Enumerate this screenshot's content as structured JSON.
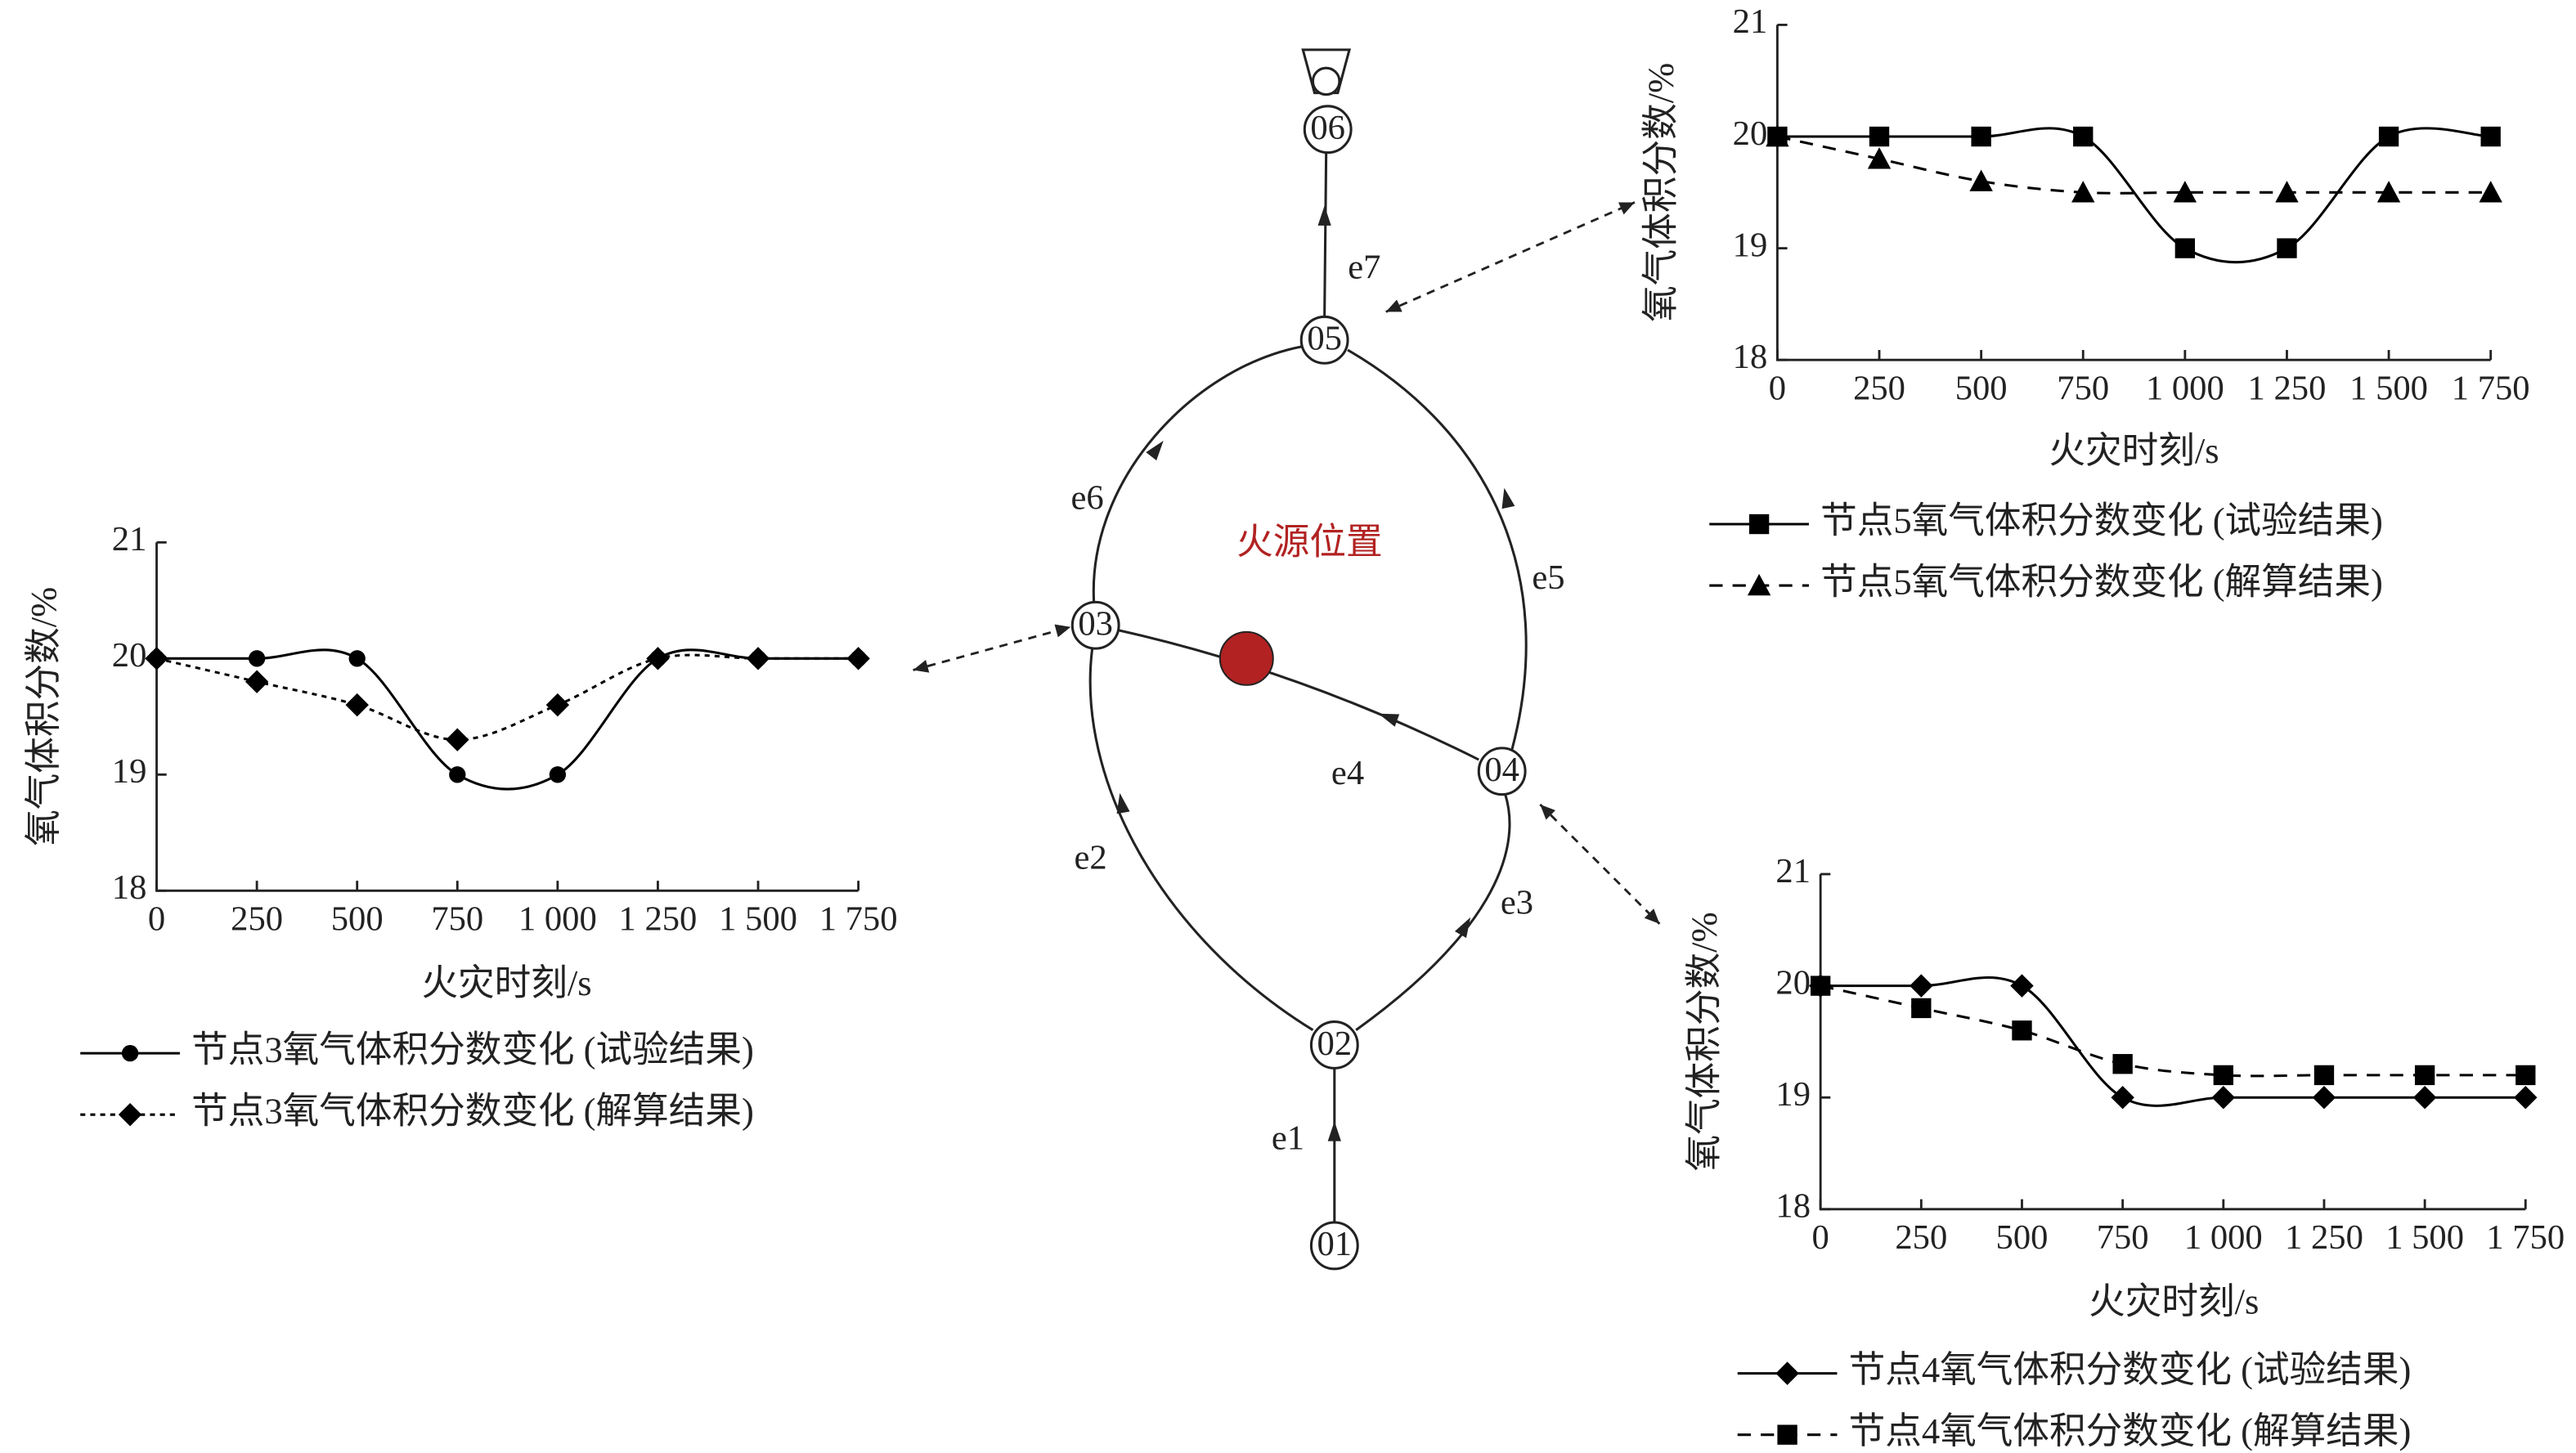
{
  "chart_data": [
    {
      "type": "line",
      "xlabel": "火灾时刻/s",
      "ylabel": "氧气体积分数/%",
      "x": [
        0,
        250,
        500,
        750,
        1000,
        1250,
        1500,
        1750
      ],
      "xlim": [
        0,
        1750
      ],
      "xticks": [
        0,
        250,
        500,
        750,
        {
          "value": 1000,
          "label": "1 000"
        },
        {
          "value": 1250,
          "label": "1 250"
        },
        {
          "value": 1500,
          "label": "1 500"
        },
        {
          "value": 1750,
          "label": "1 750"
        }
      ],
      "ylim": [
        18,
        21
      ],
      "yticks": [
        18,
        19,
        20,
        21
      ],
      "series": [
        {
          "name": "节点3氧气体积分数变化 (试验结果)",
          "color": "#000000",
          "marker": "circle",
          "line_style": "solid",
          "values": [
            20,
            20,
            20,
            19,
            19,
            20,
            20,
            20
          ]
        },
        {
          "name": "节点3氧气体积分数变化 (解算结果)",
          "color": "#000000",
          "marker": "diamond",
          "line_style": "dotted",
          "values": [
            20,
            19.8,
            19.6,
            19.3,
            19.6,
            20,
            20,
            20
          ]
        }
      ]
    },
    {
      "type": "line",
      "xlabel": "火灾时刻/s",
      "ylabel": "氧气体积分数/%",
      "x": [
        0,
        250,
        500,
        750,
        1000,
        1250,
        1500,
        1750
      ],
      "xlim": [
        0,
        1750
      ],
      "xticks": [
        0,
        250,
        500,
        750,
        {
          "value": 1000,
          "label": "1 000"
        },
        {
          "value": 1250,
          "label": "1 250"
        },
        {
          "value": 1500,
          "label": "1 500"
        },
        {
          "value": 1750,
          "label": "1 750"
        }
      ],
      "ylim": [
        18,
        21
      ],
      "yticks": [
        18,
        19,
        20,
        21
      ],
      "series": [
        {
          "name": "节点5氧气体积分数变化 (试验结果)",
          "color": "#000000",
          "marker": "square",
          "line_style": "solid",
          "values": [
            20,
            20,
            20,
            20,
            19,
            19,
            20,
            20
          ]
        },
        {
          "name": "节点5氧气体积分数变化 (解算结果)",
          "color": "#000000",
          "marker": "triangle",
          "line_style": "dashed",
          "values": [
            20,
            19.8,
            19.6,
            19.5,
            19.5,
            19.5,
            19.5,
            19.5
          ]
        }
      ]
    },
    {
      "type": "line",
      "xlabel": "火灾时刻/s",
      "ylabel": "氧气体积分数/%",
      "x": [
        0,
        250,
        500,
        750,
        1000,
        1250,
        1500,
        1750
      ],
      "xlim": [
        0,
        1750
      ],
      "xticks": [
        0,
        250,
        500,
        750,
        {
          "value": 1000,
          "label": "1 000"
        },
        {
          "value": 1250,
          "label": "1 250"
        },
        {
          "value": 1500,
          "label": "1 500"
        },
        {
          "value": 1750,
          "label": "1 750"
        }
      ],
      "ylim": [
        18,
        21
      ],
      "yticks": [
        18,
        19,
        20,
        21
      ],
      "series": [
        {
          "name": "节点4氧气体积分数变化 (试验结果)",
          "color": "#000000",
          "marker": "diamond",
          "line_style": "solid",
          "values": [
            20,
            20,
            20,
            19,
            19,
            19,
            19,
            19
          ]
        },
        {
          "name": "节点4氧气体积分数变化 (解算结果)",
          "color": "#000000",
          "marker": "square",
          "line_style": "dashed",
          "values": [
            20,
            19.8,
            19.6,
            19.3,
            19.2,
            19.2,
            19.2,
            19.2
          ]
        }
      ]
    }
  ],
  "diagram": {
    "nodes": [
      {
        "label": "01"
      },
      {
        "label": "02"
      },
      {
        "label": "03"
      },
      {
        "label": "04"
      },
      {
        "label": "05"
      },
      {
        "label": "06"
      }
    ],
    "edges": [
      {
        "label": "e1"
      },
      {
        "label": "e2"
      },
      {
        "label": "e3"
      },
      {
        "label": "e4"
      },
      {
        "label": "e5"
      },
      {
        "label": "e6"
      },
      {
        "label": "e7"
      }
    ],
    "fire_source": {
      "label": "火源位置",
      "color": "#b22222"
    }
  }
}
